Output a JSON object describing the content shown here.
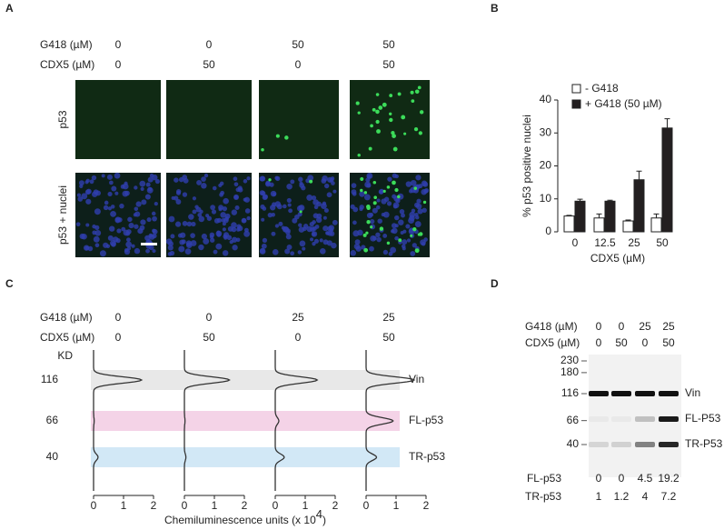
{
  "panel_a": {
    "label": "A",
    "rows": [
      {
        "name": "G418 (µM)",
        "values": [
          "0",
          "0",
          "50",
          "50"
        ]
      },
      {
        "name": "CDX5 (µM)",
        "values": [
          "0",
          "50",
          "0",
          "50"
        ]
      }
    ],
    "image_rows": [
      "p53",
      "p53 + nuclei"
    ]
  },
  "chart_data": {
    "type": "bar",
    "panel_label": "B",
    "y_label": "% p53 positive nuclei",
    "x_label": "CDX5 (µM)",
    "categories": [
      "0",
      "12.5",
      "25",
      "50"
    ],
    "series": [
      {
        "name": "-  G418",
        "color": "#ffffff",
        "values": [
          4.8,
          4.2,
          3.3,
          4.2
        ],
        "errors": [
          0.2,
          1.2,
          0.3,
          1.2
        ]
      },
      {
        "name": "+ G418 (50 µM)",
        "color": "#231f20",
        "values": [
          9.3,
          9.3,
          15.8,
          31.5
        ],
        "errors": [
          0.6,
          0.3,
          2.6,
          2.8
        ]
      }
    ],
    "ylim": [
      0,
      40
    ],
    "yticks": [
      0,
      10,
      20,
      30,
      40
    ]
  },
  "panel_c": {
    "label": "C",
    "rows": [
      {
        "name": "G418 (µM)",
        "values": [
          "0",
          "0",
          "25",
          "25"
        ]
      },
      {
        "name": "CDX5 (µM)",
        "values": [
          "0",
          "50",
          "0",
          "50"
        ]
      }
    ],
    "kd_label": "KD",
    "kd": [
      116,
      66,
      40
    ],
    "bands": [
      "Vin",
      "FL-p53",
      "TR-p53"
    ],
    "band_colors": [
      "#e8e8e8",
      "#f4d3e7",
      "#d2e8f6"
    ],
    "traces": [
      [
        1.6,
        0.02,
        0.15
      ],
      [
        1.5,
        0.02,
        0.05
      ],
      [
        1.4,
        0.12,
        0.3
      ],
      [
        1.6,
        0.9,
        0.35
      ]
    ],
    "xticks": [
      0,
      1,
      2
    ],
    "x_label": "Chemiluminescence units (x 10",
    "x_label_exponent": "4",
    "x_label_end": ")"
  },
  "panel_d": {
    "label": "D",
    "rows": [
      {
        "name": "G418 (µM)",
        "values": [
          "0",
          "0",
          "25",
          "25"
        ]
      },
      {
        "name": "CDX5 (µM)",
        "values": [
          "0",
          "50",
          "0",
          "50"
        ]
      }
    ],
    "mw": [
      230,
      180,
      116,
      66,
      40
    ],
    "bands": [
      "Vin",
      "FL-P53",
      "TR-P53"
    ],
    "quant": [
      {
        "name": "FL-p53",
        "values": [
          0,
          0,
          4.5,
          19.2
        ]
      },
      {
        "name": "TR-p53",
        "values": [
          1,
          1.2,
          4,
          7.2
        ]
      }
    ]
  }
}
